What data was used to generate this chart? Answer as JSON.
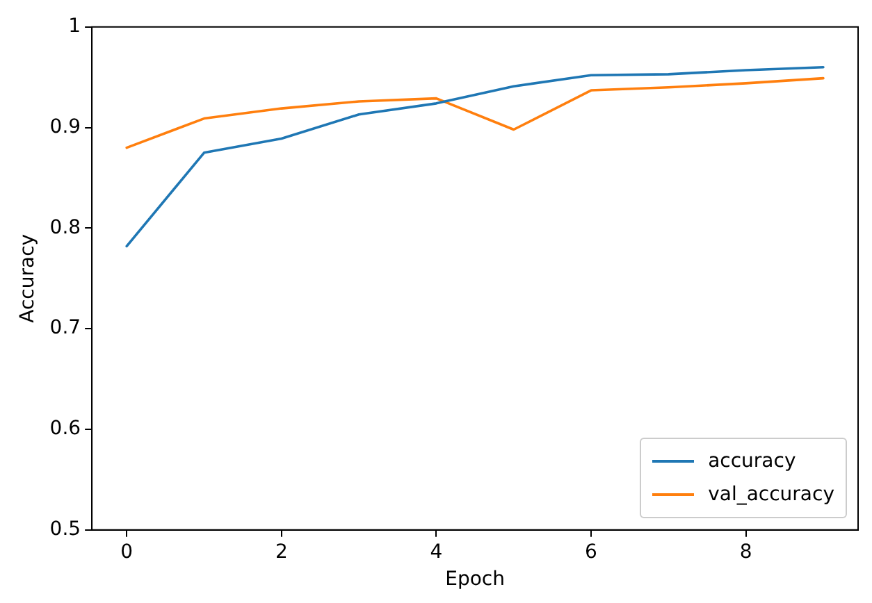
{
  "chart_data": {
    "type": "line",
    "xlabel": "Epoch",
    "ylabel": "Accuracy",
    "x": [
      0,
      1,
      2,
      3,
      4,
      5,
      6,
      7,
      8,
      9
    ],
    "series": [
      {
        "name": "accuracy",
        "color": "#1f77b4",
        "values": [
          0.782,
          0.875,
          0.889,
          0.913,
          0.924,
          0.941,
          0.952,
          0.953,
          0.957,
          0.96
        ]
      },
      {
        "name": "val_accuracy",
        "color": "#ff7f0e",
        "values": [
          0.88,
          0.909,
          0.919,
          0.926,
          0.929,
          0.898,
          0.937,
          0.94,
          0.944,
          0.949
        ]
      }
    ],
    "xlim": [
      -0.45,
      9.45
    ],
    "xticks": [
      0,
      2,
      4,
      6,
      8
    ],
    "ylim": [
      0.5,
      1.0
    ],
    "yticks": [
      0.5,
      0.6,
      0.7,
      0.8,
      0.9,
      1.0
    ],
    "grid": false,
    "legend": "bottom right",
    "marker": "none",
    "line_style": "solid"
  }
}
